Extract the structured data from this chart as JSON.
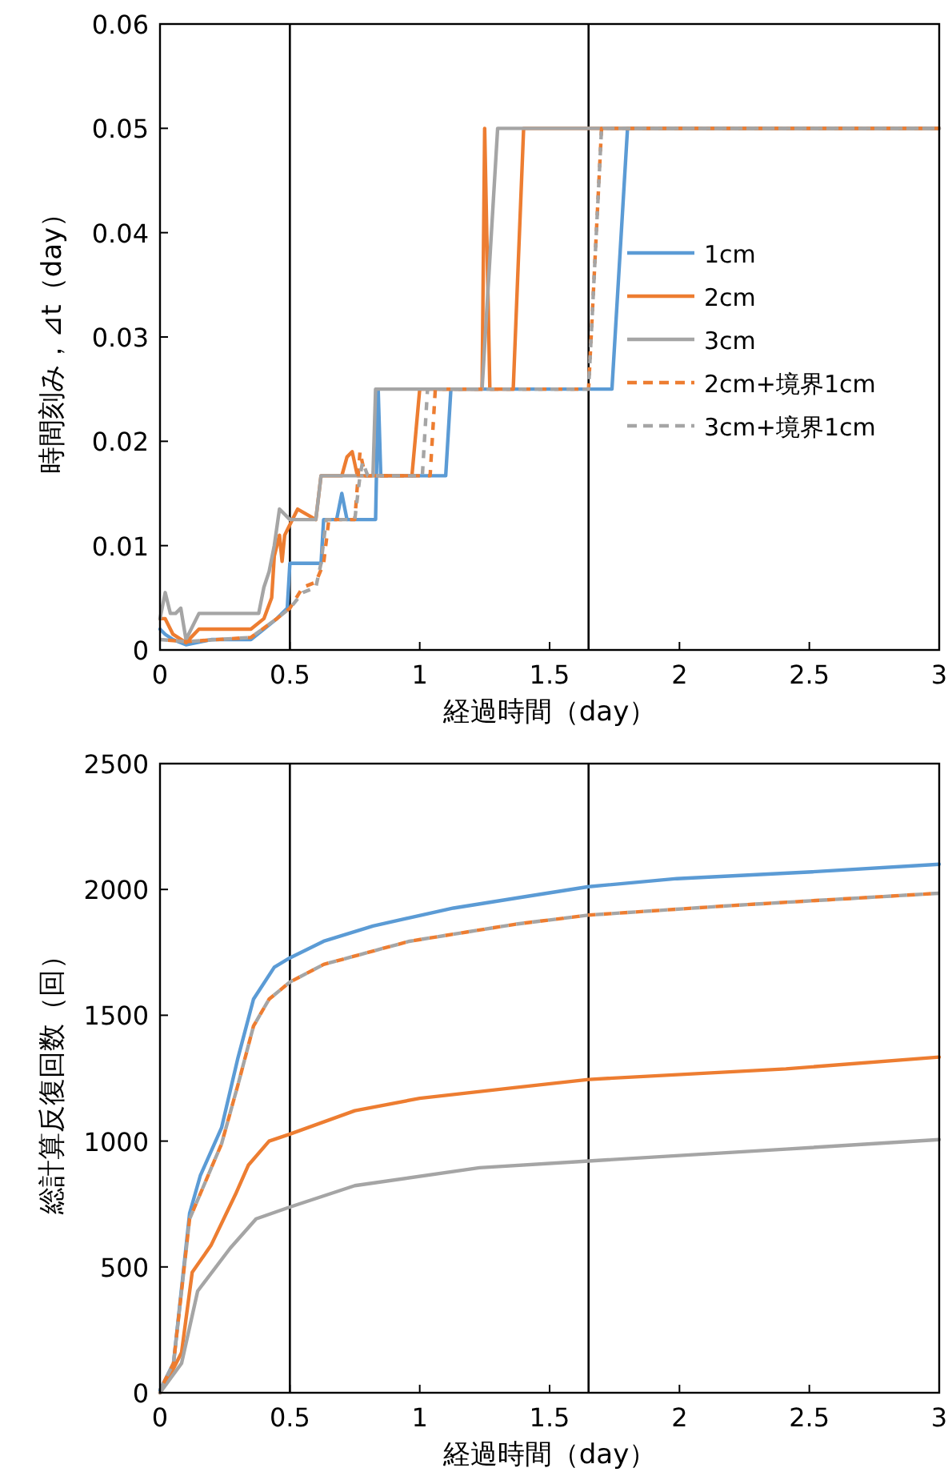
{
  "chart_data": [
    {
      "type": "line",
      "xlabel": "経過時間（day）",
      "ylabel": "時間刻み，⊿t（day）",
      "xlim": [
        0,
        3
      ],
      "xticks": [
        0,
        0.5,
        1,
        1.5,
        2,
        2.5,
        3
      ],
      "ylim": [
        0,
        0.06
      ],
      "yticks": [
        0,
        0.01,
        0.02,
        0.03,
        0.04,
        0.05,
        0.06
      ],
      "grid": false,
      "legend": "right",
      "marker": "none",
      "ref_lines": [
        {
          "axis": "x",
          "value": 0.5,
          "color": "#000000"
        },
        {
          "axis": "x",
          "value": 1.65,
          "color": "#000000"
        }
      ],
      "series": [
        {
          "name": "1cm",
          "color": "#5b9bd5",
          "line_style": "solid",
          "x": [
            0,
            0.02,
            0.05,
            0.1,
            0.2,
            0.35,
            0.4,
            0.45,
            0.49,
            0.5,
            0.62,
            0.63,
            0.68,
            0.7,
            0.72,
            0.83,
            0.84,
            0.85,
            1.1,
            1.12,
            1.74,
            1.8,
            3
          ],
          "values": [
            0.002,
            0.0015,
            0.001,
            0.0005,
            0.001,
            0.001,
            0.002,
            0.003,
            0.004,
            0.0083,
            0.0083,
            0.0125,
            0.0125,
            0.015,
            0.0125,
            0.0125,
            0.025,
            0.0167,
            0.0167,
            0.025,
            0.025,
            0.05,
            0.05
          ]
        },
        {
          "name": "2cm",
          "color": "#ed7d31",
          "line_style": "solid",
          "x": [
            0,
            0.02,
            0.05,
            0.1,
            0.15,
            0.35,
            0.4,
            0.43,
            0.44,
            0.46,
            0.47,
            0.48,
            0.5,
            0.53,
            0.6,
            0.62,
            0.7,
            0.72,
            0.74,
            0.76,
            0.97,
            1.0,
            1.24,
            1.25,
            1.27,
            1.36,
            1.4,
            3
          ],
          "values": [
            0.003,
            0.003,
            0.0015,
            0.0007,
            0.002,
            0.002,
            0.003,
            0.005,
            0.009,
            0.011,
            0.0085,
            0.011,
            0.012,
            0.0135,
            0.0125,
            0.0167,
            0.0167,
            0.0185,
            0.019,
            0.0167,
            0.0167,
            0.025,
            0.025,
            0.05,
            0.025,
            0.025,
            0.05,
            0.05
          ]
        },
        {
          "name": "3cm",
          "color": "#a5a5a5",
          "line_style": "solid",
          "x": [
            0,
            0.02,
            0.04,
            0.06,
            0.08,
            0.1,
            0.15,
            0.38,
            0.4,
            0.42,
            0.44,
            0.46,
            0.5,
            0.6,
            0.62,
            0.82,
            0.83,
            1.24,
            1.3,
            3
          ],
          "values": [
            0.003,
            0.0055,
            0.0035,
            0.0035,
            0.004,
            0.001,
            0.0035,
            0.0035,
            0.006,
            0.0075,
            0.01,
            0.0135,
            0.0125,
            0.0125,
            0.0167,
            0.0167,
            0.025,
            0.025,
            0.05,
            0.05
          ]
        },
        {
          "name": "2cm+境界1cm",
          "color": "#ed7d31",
          "line_style": "dashed",
          "x": [
            0,
            0.1,
            0.35,
            0.45,
            0.5,
            0.55,
            0.6,
            0.63,
            0.65,
            0.75,
            0.77,
            0.79,
            0.8,
            1.04,
            1.06,
            1.65,
            1.7,
            3
          ],
          "values": [
            0.001,
            0.0008,
            0.0012,
            0.003,
            0.004,
            0.006,
            0.0065,
            0.0083,
            0.0125,
            0.0125,
            0.019,
            0.0167,
            0.0167,
            0.0167,
            0.025,
            0.025,
            0.05,
            0.05
          ]
        },
        {
          "name": "3cm+境界1cm",
          "color": "#a5a5a5",
          "line_style": "dashed",
          "x": [
            0,
            0.1,
            0.35,
            0.45,
            0.5,
            0.55,
            0.6,
            0.62,
            0.64,
            0.75,
            0.77,
            0.78,
            0.8,
            1.01,
            1.03,
            1.65,
            1.7,
            3
          ],
          "values": [
            0.001,
            0.0008,
            0.0012,
            0.003,
            0.004,
            0.0055,
            0.006,
            0.0083,
            0.0125,
            0.0125,
            0.0167,
            0.018,
            0.0167,
            0.0167,
            0.025,
            0.025,
            0.05,
            0.05
          ]
        }
      ]
    },
    {
      "type": "line",
      "xlabel": "経過時間（day）",
      "ylabel": "総計算反復回数（回）",
      "xlim": [
        0,
        3
      ],
      "xticks": [
        0,
        0.5,
        1,
        1.5,
        2,
        2.5,
        3
      ],
      "ylim": [
        0,
        2500
      ],
      "yticks": [
        0,
        500,
        1000,
        1500,
        2000,
        2500
      ],
      "grid": false,
      "marker": "none",
      "ref_lines": [
        {
          "axis": "x",
          "value": 0.5,
          "color": "#000000"
        },
        {
          "axis": "x",
          "value": 1.65,
          "color": "#000000"
        }
      ],
      "series": [
        {
          "color": "#5b9bd5",
          "line_style": "solid",
          "x": [
            0,
            0.052,
            0.114,
            0.155,
            0.237,
            0.3,
            0.36,
            0.44,
            0.5,
            0.63,
            0.82,
            1.13,
            1.41,
            1.65,
            1.99,
            2.51,
            3
          ],
          "values": [
            10,
            117,
            713,
            862,
            1053,
            1330,
            1564,
            1691,
            1728,
            1794,
            1855,
            1926,
            1972,
            2011,
            2043,
            2070,
            2100
          ]
        },
        {
          "color": "#ed7d31",
          "line_style": "solid",
          "x": [
            0,
            0.052,
            0.083,
            0.124,
            0.196,
            0.29,
            0.34,
            0.42,
            0.5,
            0.75,
            1.0,
            1.37,
            1.65,
            2.41,
            3
          ],
          "values": [
            0,
            96,
            160,
            479,
            585,
            787,
            904,
            1000,
            1028,
            1121,
            1170,
            1213,
            1245,
            1287,
            1334
          ]
        },
        {
          "color": "#a5a5a5",
          "line_style": "solid",
          "x": [
            0,
            0.083,
            0.145,
            0.27,
            0.37,
            0.5,
            0.75,
            1.23,
            1.65,
            2.41,
            3
          ],
          "values": [
            0,
            117,
            404,
            574,
            691,
            738,
            823,
            894,
            921,
            968,
            1006
          ]
        },
        {
          "color": "#ed7d31",
          "line_style": "dashed",
          "x": [
            0,
            0.052,
            0.114,
            0.237,
            0.3,
            0.36,
            0.42,
            0.5,
            0.63,
            0.96,
            1.37,
            1.65,
            2.2,
            3
          ],
          "values": [
            10,
            117,
            691,
            989,
            1223,
            1457,
            1564,
            1632,
            1702,
            1794,
            1862,
            1898,
            1936,
            1985
          ]
        },
        {
          "color": "#a5a5a5",
          "line_style": "dashed",
          "x": [
            0,
            0.052,
            0.114,
            0.237,
            0.3,
            0.36,
            0.42,
            0.5,
            0.63,
            0.96,
            1.37,
            1.65,
            2.2,
            3
          ],
          "values": [
            10,
            117,
            691,
            989,
            1223,
            1457,
            1564,
            1632,
            1702,
            1794,
            1862,
            1898,
            1936,
            1985
          ]
        }
      ]
    }
  ]
}
